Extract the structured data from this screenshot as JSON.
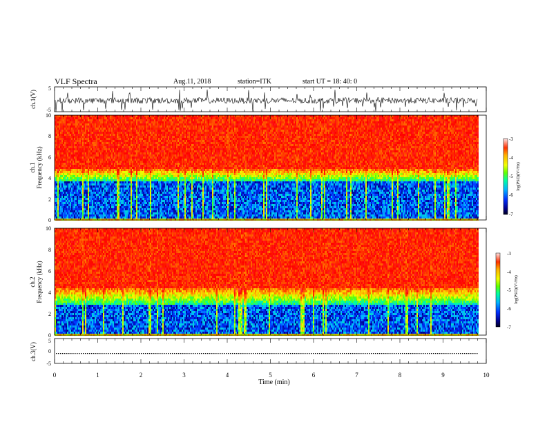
{
  "header": {
    "title": "VLF Spectra",
    "date": "Aug.11, 2018",
    "station": "station=ITK",
    "start": "start UT =   18: 40: 0"
  },
  "chart_data": [
    {
      "type": "line",
      "panel": "ch1-waveform",
      "ylabel": "ch.1(V)",
      "ylim": [
        -5,
        5
      ],
      "yticks": [
        "5",
        "-5"
      ],
      "xlim": [
        0,
        10
      ],
      "data_extent_x": [
        0,
        9.8
      ],
      "series": [
        {
          "baseline": -0.5,
          "noise_amplitude": 1.2,
          "spike_max": 4.5,
          "color": "#000000"
        }
      ]
    },
    {
      "type": "heatmap",
      "panel": "ch1-spectrogram",
      "ylabel_line1": "ch.1",
      "ylabel_line2": "Frequency (kHz)",
      "ylim": [
        0,
        10
      ],
      "yticks": [
        "0",
        "2",
        "4",
        "6",
        "8",
        "10"
      ],
      "xlim": [
        0,
        10
      ],
      "data_extent_x": [
        0,
        9.8
      ],
      "log_psd_range": [
        -7,
        -3
      ],
      "high_band_kHz": [
        5,
        10
      ],
      "transition_kHz": [
        3.8,
        5
      ],
      "low_band_kHz": [
        0.3,
        3.8
      ],
      "colorbar": {
        "label": "log(PSD)(V²/Hz)",
        "ticks": [
          "-3",
          "-4",
          "-5",
          "-6",
          "-7"
        ]
      }
    },
    {
      "type": "heatmap",
      "panel": "ch2-spectrogram",
      "ylabel_line1": "ch.2",
      "ylabel_line2": "Frequency (kHz)",
      "ylim": [
        0,
        10
      ],
      "yticks": [
        "0",
        "2",
        "4",
        "6",
        "8",
        "10"
      ],
      "xlim": [
        0,
        10
      ],
      "data_extent_x": [
        0,
        9.8
      ],
      "log_psd_range": [
        -7,
        -3
      ],
      "high_band_kHz": [
        4.5,
        10
      ],
      "transition_kHz": [
        3.0,
        4.5
      ],
      "low_band_kHz": [
        0.3,
        3.0
      ],
      "colorbar": {
        "label": "log(PSD)(V²/Hz)",
        "ticks": [
          "-3",
          "-4",
          "-5",
          "-6",
          "-7"
        ]
      }
    },
    {
      "type": "line",
      "panel": "ch3-waveform",
      "ylabel": "ch.3(V)",
      "ylim": [
        -5,
        5
      ],
      "yticks": [
        "5",
        "0",
        "-5"
      ],
      "xlim": [
        0,
        10
      ],
      "data_extent_x": [
        0,
        9.8
      ],
      "series": [
        {
          "constant": -1.0,
          "color": "#000000"
        }
      ]
    }
  ],
  "x_axis": {
    "label": "Time (min)",
    "ticks": [
      "0",
      "1",
      "2",
      "3",
      "4",
      "5",
      "6",
      "7",
      "8",
      "9",
      "10"
    ],
    "range": [
      0,
      10
    ]
  },
  "colormap": [
    "#000030",
    "#00008c",
    "#0030ff",
    "#00b4ff",
    "#00ffa0",
    "#60ff00",
    "#f0ff00",
    "#ffb000",
    "#ff5000",
    "#ff0000",
    "#ff3c3c"
  ]
}
